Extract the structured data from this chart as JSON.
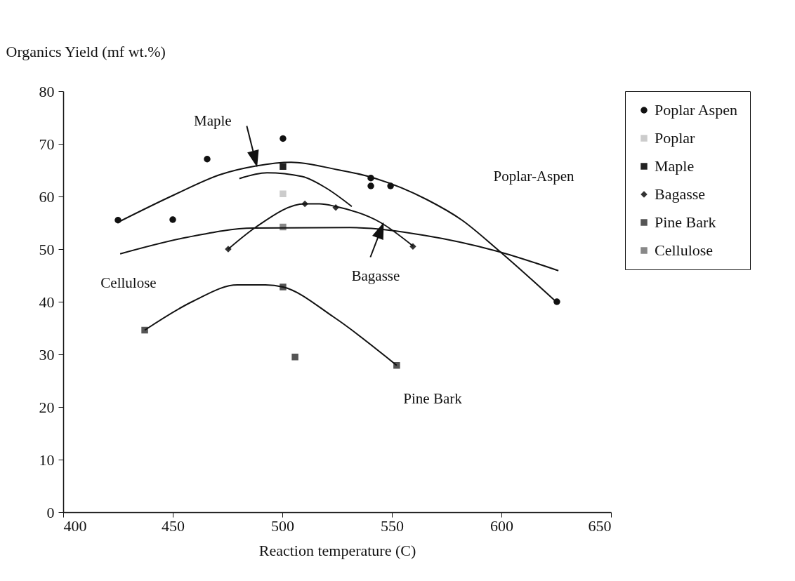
{
  "chart_data": {
    "type": "scatter",
    "xlabel": "Reaction temperature (C)",
    "ylabel": "Organics Yield (mf wt.%)",
    "xlim": [
      400,
      650
    ],
    "xticks": [
      400,
      450,
      500,
      550,
      600,
      650
    ],
    "ylim": [
      0,
      80
    ],
    "yticks": [
      0,
      10,
      20,
      30,
      40,
      50,
      60,
      70,
      80
    ],
    "grid": false,
    "legend": "top right",
    "series": [
      {
        "name": "Poplar Aspen",
        "color": "#111111",
        "marker": "circle",
        "x": [
          425,
          450,
          465.7,
          500.3,
          540.4,
          540.4,
          549.4,
          625.3
        ],
        "values": [
          55.5,
          55.6,
          67.1,
          71.0,
          63.5,
          62.0,
          62.0,
          40.0
        ]
      },
      {
        "name": "Poplar",
        "color": "#cccccc",
        "marker": "square",
        "x": [
          500.3
        ],
        "values": [
          60.5
        ]
      },
      {
        "name": "Maple",
        "color": "#222222",
        "marker": "square",
        "x": [
          500.3
        ],
        "values": [
          65.7
        ]
      },
      {
        "name": "Bagasse",
        "color": "#333333",
        "marker": "diamond",
        "x": [
          475.3,
          510.3,
          524.4,
          559.6
        ],
        "values": [
          50.0,
          58.6,
          57.9,
          50.5
        ]
      },
      {
        "name": "Pine Bark",
        "color": "#555555",
        "marker": "square",
        "x": [
          437.2,
          500.3,
          505.8,
          552.2
        ],
        "values": [
          34.6,
          42.8,
          29.5,
          27.9
        ]
      },
      {
        "name": "Cellulose",
        "color": "#888888",
        "marker": "square",
        "x": [
          500.3
        ],
        "values": [
          54.2
        ]
      },
      {
        "type": "line",
        "color": "#111111",
        "marker": "none",
        "x": [
          425,
          450.6,
          472,
          488,
          504,
          525,
          539.4,
          566,
          582,
          598,
          624.7
        ],
        "values": [
          55.1,
          60.3,
          64.2,
          65.8,
          66.5,
          65.1,
          63.8,
          59.4,
          55.5,
          50,
          40.1
        ]
      },
      {
        "type": "line",
        "color": "#111111",
        "marker": "none",
        "x": [
          480.4,
          493,
          509,
          520,
          531.7
        ],
        "values": [
          63.4,
          64.5,
          63.8,
          61.6,
          58.1
        ]
      },
      {
        "type": "line",
        "color": "#111111",
        "marker": "none",
        "x": [
          475.3,
          488,
          510.3,
          517,
          524.4,
          544.6,
          559.6
        ],
        "values": [
          50,
          54.2,
          58.6,
          58.6,
          58.1,
          55.1,
          50.6
        ]
      },
      {
        "type": "line",
        "color": "#111111",
        "marker": "none",
        "x": [
          426,
          456,
          486.9,
          530.8,
          565,
          598,
          626
        ],
        "values": [
          49.1,
          52.2,
          54.0,
          54.1,
          52.6,
          49.6,
          45.9
        ]
      },
      {
        "type": "line",
        "color": "#111111",
        "marker": "none",
        "x": [
          437.2,
          459.3,
          479.5,
          492.3,
          500.3,
          523.4,
          552.2
        ],
        "values": [
          34.6,
          40.1,
          43.2,
          43.2,
          42.8,
          37.1,
          27.9
        ]
      }
    ],
    "annotations": [
      {
        "text": "Maple",
        "x": 488.1,
        "y": 66.0
      },
      {
        "text": "Bagasse",
        "x": 545.8,
        "y": 54.8
      },
      "Poplar-Aspen",
      "Cellulose",
      "Pine Bark"
    ]
  }
}
